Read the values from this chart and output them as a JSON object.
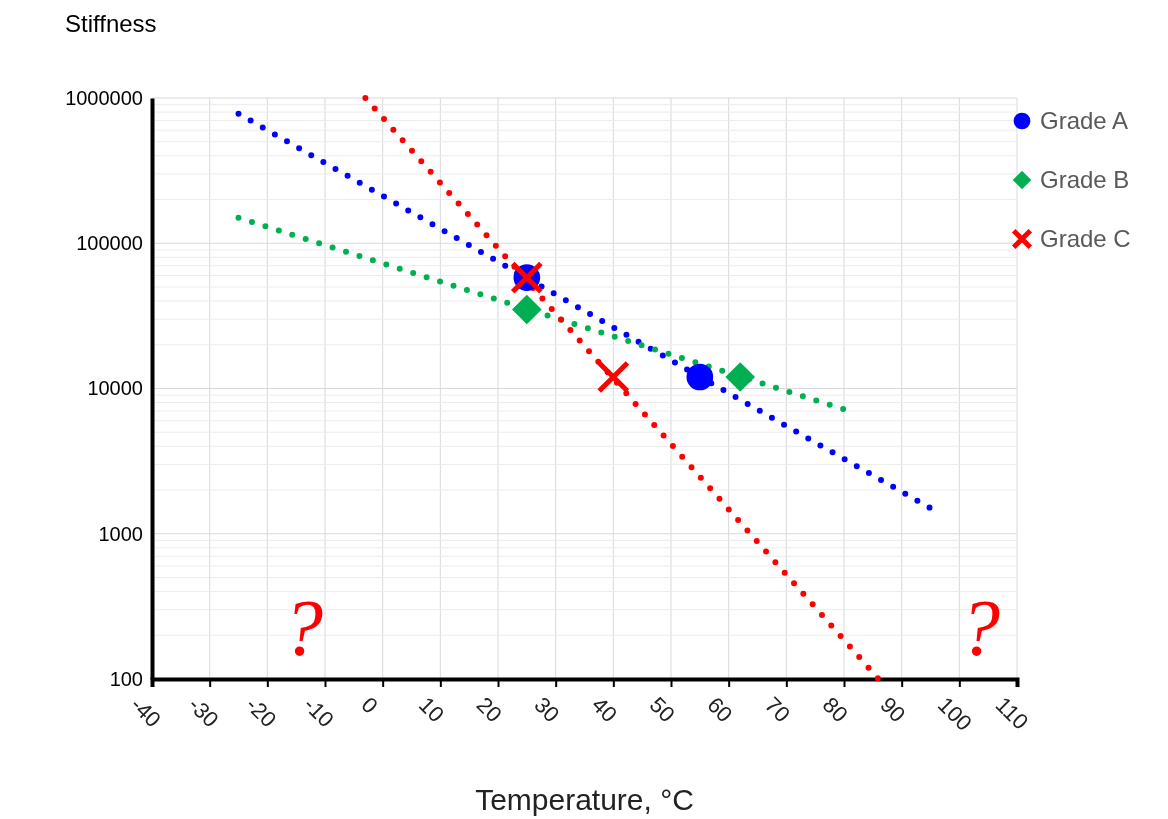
{
  "chart_data": {
    "type": "scatter",
    "xlabel": "Temperature, °C",
    "ylabel": "Stiffness",
    "log": "y",
    "grid": true,
    "legend": "right",
    "xlim": [
      -40,
      110
    ],
    "xticks": [
      -40,
      -30,
      -20,
      -10,
      0,
      10,
      20,
      30,
      40,
      50,
      60,
      70,
      80,
      90,
      100,
      110
    ],
    "ylim": [
      100,
      1000000
    ],
    "yticks": [
      100,
      1000,
      10000,
      100000,
      1000000
    ],
    "series": [
      {
        "type": "line",
        "color": "#0000ff",
        "x": [
          -25,
          95
        ],
        "values": [
          780000,
          1500
        ],
        "line_style": "dotted",
        "marker": "none"
      },
      {
        "type": "line",
        "color": "#00b050",
        "x": [
          -25,
          80
        ],
        "values": [
          150000,
          7200
        ],
        "line_style": "dotted",
        "marker": "none"
      },
      {
        "type": "line",
        "color": "#ff0000",
        "x": [
          -3,
          86
        ],
        "values": [
          1000000,
          100
        ],
        "line_style": "dotted",
        "marker": "none"
      },
      {
        "name": "Grade A",
        "color": "#0000ff",
        "x": [
          25,
          55
        ],
        "values": [
          58000,
          12000
        ],
        "marker": "circle"
      },
      {
        "name": "Grade B",
        "color": "#00b050",
        "x": [
          25,
          62
        ],
        "values": [
          35000,
          12000
        ],
        "marker": "diamond"
      },
      {
        "name": "Grade C",
        "color": "#ff0000",
        "x": [
          25,
          40
        ],
        "values": [
          58000,
          12000
        ],
        "marker": "cross"
      }
    ],
    "annotations": [
      "?",
      "?"
    ]
  }
}
